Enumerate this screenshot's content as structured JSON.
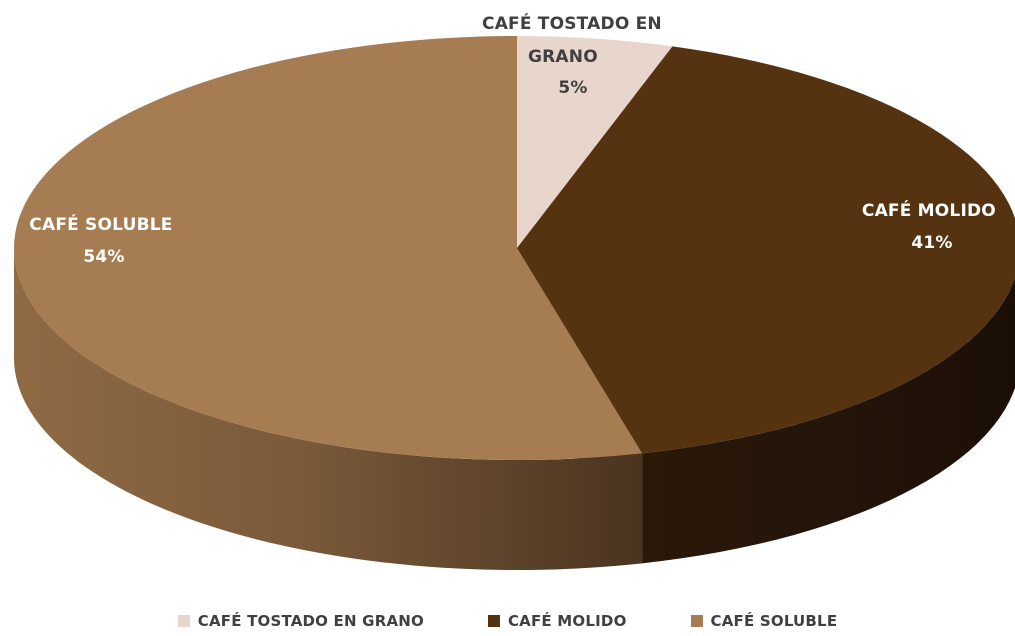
{
  "chart_data": {
    "type": "pie",
    "title": "",
    "categories": [
      "CAFÉ TOSTADO EN GRANO",
      "CAFÉ MOLIDO",
      "CAFÉ SOLUBLE"
    ],
    "values": [
      5,
      41,
      54
    ],
    "value_labels": [
      "5%",
      "41%",
      "54%"
    ],
    "colors": [
      "#E8D5CC",
      "#553311",
      "#A67C52"
    ],
    "label_colors": [
      "#404040",
      "#FFFFFF",
      "#FFFFFF"
    ],
    "style": "3d",
    "legend_position": "bottom"
  },
  "slice_labels": [
    {
      "line1": "CAFÉ TOSTADO EN",
      "line2": "GRANO",
      "value": "5%"
    },
    {
      "line1": "CAFÉ MOLIDO",
      "value": "41%"
    },
    {
      "line1": "CAFÉ SOLUBLE",
      "value": "54%"
    }
  ],
  "legend": [
    {
      "label": "CAFÉ TOSTADO EN GRANO",
      "color": "#E8D5CC"
    },
    {
      "label": "CAFÉ MOLIDO",
      "color": "#553311"
    },
    {
      "label": "CAFÉ SOLUBLE",
      "color": "#A67C52"
    }
  ]
}
